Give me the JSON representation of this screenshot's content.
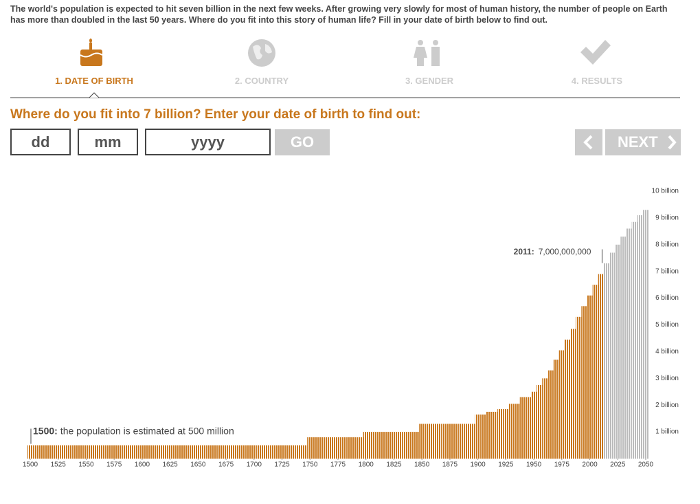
{
  "header": {
    "intro": "The world's population is expected to hit seven billion in the next few weeks. After growing very slowly for most of human history, the number of people on Earth has more than doubled in the last 50 years. Where do you fit into this story of human life? Fill in your date of birth below to find out."
  },
  "steps": [
    "1. DATE OF BIRTH",
    "2. COUNTRY",
    "3. GENDER",
    "4. RESULTS"
  ],
  "form": {
    "question": "Where do you fit into 7 billion? Enter your date of birth to find out:",
    "day": "dd",
    "month": "mm",
    "year": "yyyy",
    "go": "GO",
    "next": "NEXT"
  },
  "chart_data": {
    "type": "bar",
    "x": [
      1500,
      1505,
      1510,
      1515,
      1520,
      1525,
      1530,
      1535,
      1540,
      1545,
      1550,
      1555,
      1560,
      1565,
      1570,
      1575,
      1580,
      1585,
      1590,
      1595,
      1600,
      1605,
      1610,
      1615,
      1620,
      1625,
      1630,
      1635,
      1640,
      1645,
      1650,
      1655,
      1660,
      1665,
      1670,
      1675,
      1680,
      1685,
      1690,
      1695,
      1700,
      1705,
      1710,
      1715,
      1720,
      1725,
      1730,
      1735,
      1740,
      1745,
      1750,
      1755,
      1760,
      1765,
      1770,
      1775,
      1780,
      1785,
      1790,
      1795,
      1800,
      1805,
      1810,
      1815,
      1820,
      1825,
      1830,
      1835,
      1840,
      1845,
      1850,
      1855,
      1860,
      1865,
      1870,
      1875,
      1880,
      1885,
      1890,
      1895,
      1900,
      1905,
      1910,
      1915,
      1920,
      1925,
      1930,
      1935,
      1940,
      1945,
      1950,
      1955,
      1960,
      1965,
      1970,
      1975,
      1980,
      1985,
      1990,
      1995,
      2000,
      2005,
      2010,
      2015,
      2020,
      2025,
      2030,
      2035,
      2040,
      2045,
      2050
    ],
    "series": [
      {
        "color": "#c8771d",
        "values": [
          0.5,
          0.5,
          0.5,
          0.5,
          0.5,
          0.5,
          0.5,
          0.5,
          0.5,
          0.5,
          0.5,
          0.5,
          0.5,
          0.5,
          0.5,
          0.5,
          0.5,
          0.5,
          0.5,
          0.5,
          0.5,
          0.5,
          0.5,
          0.5,
          0.5,
          0.5,
          0.5,
          0.5,
          0.5,
          0.5,
          0.5,
          0.5,
          0.5,
          0.5,
          0.5,
          0.5,
          0.5,
          0.5,
          0.5,
          0.5,
          0.5,
          0.5,
          0.5,
          0.5,
          0.5,
          0.5,
          0.5,
          0.5,
          0.5,
          0.5,
          0.8,
          0.8,
          0.8,
          0.8,
          0.8,
          0.8,
          0.8,
          0.8,
          0.8,
          0.8,
          1.0,
          1.0,
          1.0,
          1.0,
          1.0,
          1.0,
          1.0,
          1.0,
          1.0,
          1.0,
          1.3,
          1.3,
          1.3,
          1.3,
          1.3,
          1.3,
          1.3,
          1.3,
          1.3,
          1.3,
          1.65,
          1.65,
          1.75,
          1.75,
          1.85,
          1.85,
          2.05,
          2.05,
          2.3,
          2.3,
          2.5,
          2.75,
          3.0,
          3.3,
          3.7,
          4.05,
          4.45,
          4.85,
          5.3,
          5.7,
          6.1,
          6.5,
          6.9,
          null,
          null,
          null,
          null,
          null,
          null,
          null,
          null
        ]
      },
      {
        "color": "#bbbbbb",
        "values": [
          null,
          null,
          null,
          null,
          null,
          null,
          null,
          null,
          null,
          null,
          null,
          null,
          null,
          null,
          null,
          null,
          null,
          null,
          null,
          null,
          null,
          null,
          null,
          null,
          null,
          null,
          null,
          null,
          null,
          null,
          null,
          null,
          null,
          null,
          null,
          null,
          null,
          null,
          null,
          null,
          null,
          null,
          null,
          null,
          null,
          null,
          null,
          null,
          null,
          null,
          null,
          null,
          null,
          null,
          null,
          null,
          null,
          null,
          null,
          null,
          null,
          null,
          null,
          null,
          null,
          null,
          null,
          null,
          null,
          null,
          null,
          null,
          null,
          null,
          null,
          null,
          null,
          null,
          null,
          null,
          null,
          null,
          null,
          null,
          null,
          null,
          null,
          null,
          null,
          null,
          null,
          null,
          null,
          null,
          null,
          null,
          null,
          null,
          null,
          null,
          null,
          null,
          null,
          7.3,
          7.7,
          8.0,
          8.3,
          8.6,
          8.85,
          9.1,
          9.3
        ]
      }
    ],
    "xlim": [
      1500,
      2050
    ],
    "ylim": [
      0,
      10
    ],
    "xticks": [
      1500,
      1525,
      1550,
      1575,
      1600,
      1625,
      1650,
      1675,
      1700,
      1725,
      1750,
      1775,
      1800,
      1825,
      1850,
      1875,
      1900,
      1925,
      1950,
      1975,
      2000,
      2025,
      2050
    ],
    "yticks": [
      {
        "value": 1,
        "label": "1 billion"
      },
      {
        "value": 2,
        "label": "2 billion"
      },
      {
        "value": 3,
        "label": "3 billion"
      },
      {
        "value": 4,
        "label": "4 billion"
      },
      {
        "value": 5,
        "label": "5 billion"
      },
      {
        "value": 6,
        "label": "6 billion"
      },
      {
        "value": 7,
        "label": "7 billion"
      },
      {
        "value": 8,
        "label": "8 billion"
      },
      {
        "value": 9,
        "label": "9 billion"
      },
      {
        "value": 10,
        "label": "10 billion"
      }
    ],
    "annotations": [
      {
        "x": 1500,
        "label": "1500:",
        "text": "the population is estimated at 500 million"
      },
      {
        "x": 2011,
        "label": "2011:",
        "text": "7,000,000,000"
      }
    ]
  }
}
